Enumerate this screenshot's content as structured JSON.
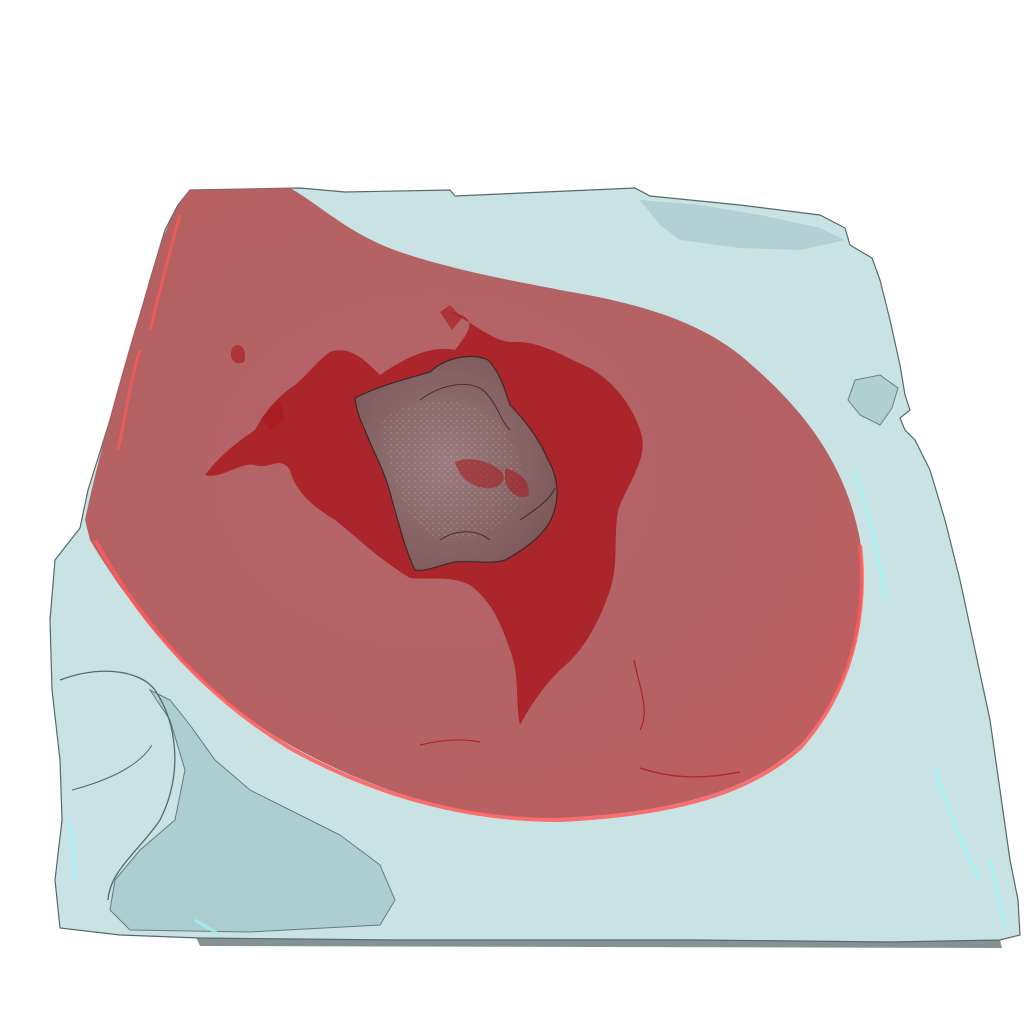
{
  "scene": {
    "background": "#ffffff",
    "colors": {
      "tissue_fill": "#c9e2e3",
      "tissue_shadow": "#a9cbcd",
      "tissue_edge": "#55696b",
      "tissue_highlight": "#9ff3f5",
      "lesion_fill": "#b7585a",
      "lesion_rim": "#ff5a5a",
      "lesion_dark": "#a8151b",
      "core_fill": "#8c6b6d",
      "core_speckle": "#e7dcdc",
      "base_shadow": "#6f7f80"
    }
  }
}
